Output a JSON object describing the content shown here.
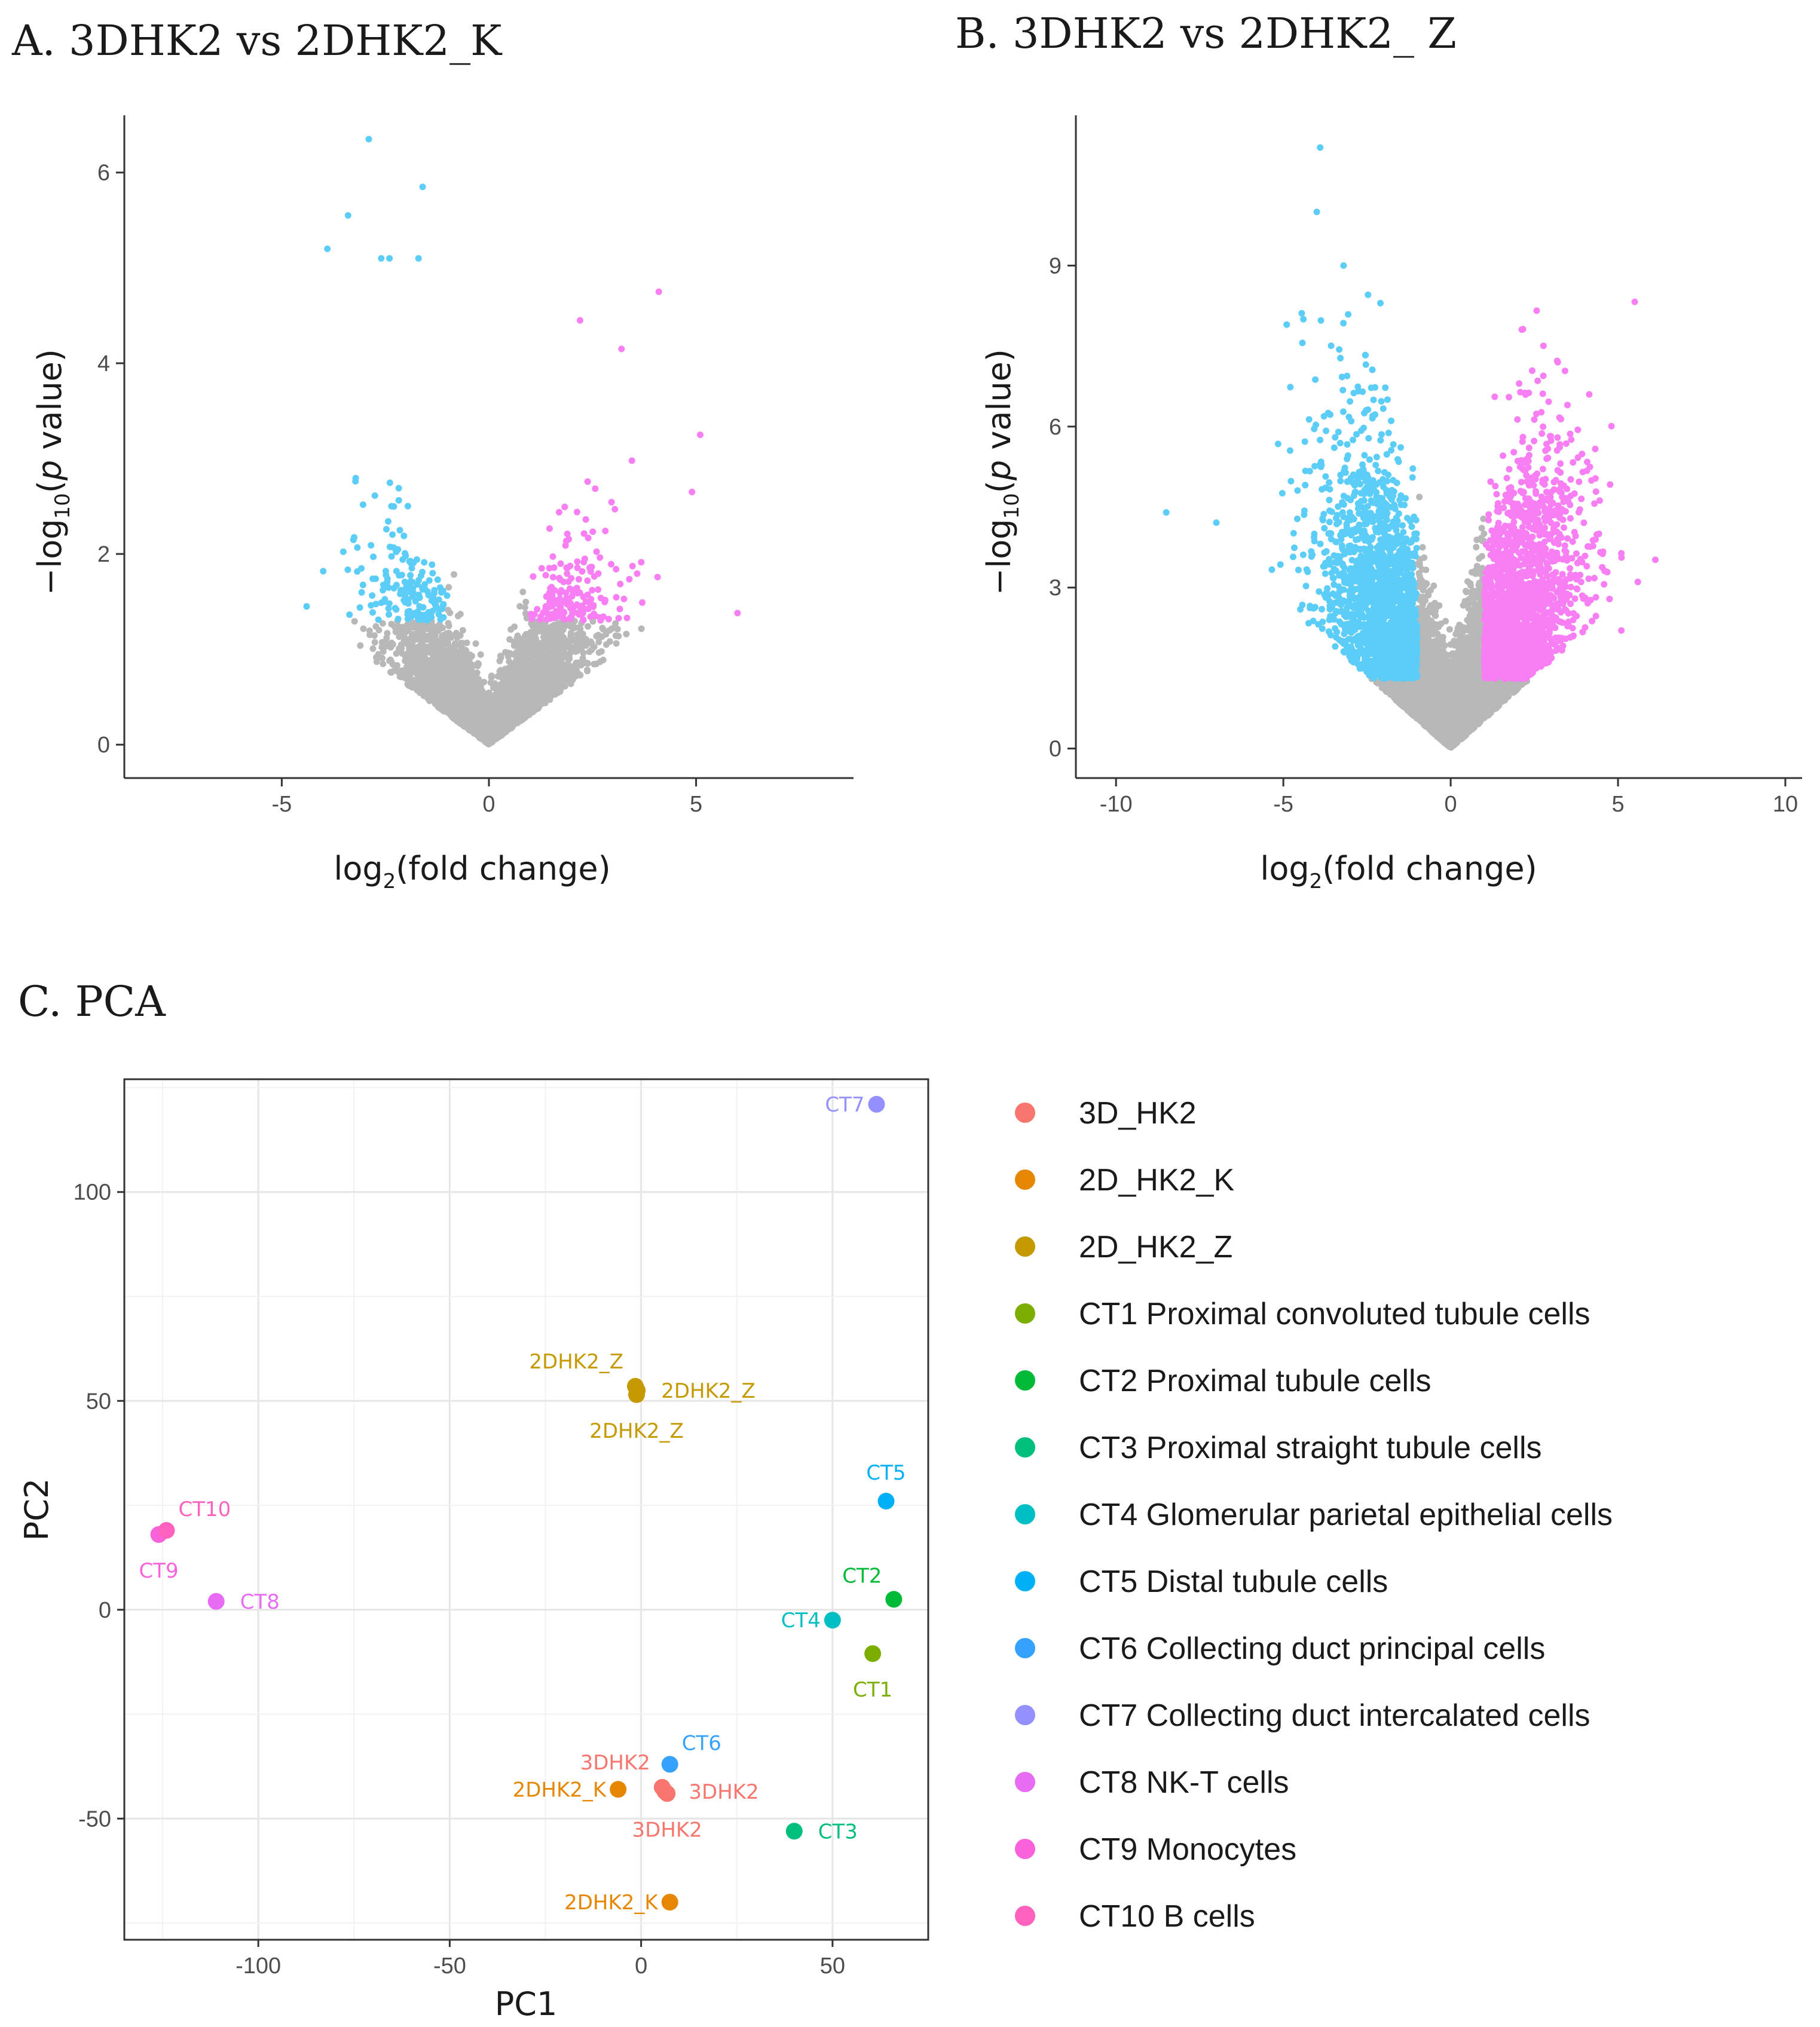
{
  "colors": {
    "up": "#f77ef3",
    "down": "#5ccdf6",
    "ns": "#b8b8b8"
  },
  "chart_data": [
    {
      "type": "scatter",
      "subtype": "volcano",
      "title": "A. 3DHK2 vs 2DHK2_K",
      "xlabel_main": "log",
      "xlabel_sub": "2",
      "xlabel_rest": "(fold change)",
      "ylabel_pre": "−log",
      "ylabel_sub": "10",
      "ylabel_open": "(",
      "ylabel_italic": "p",
      "ylabel_rest": " value)",
      "xlim": [
        -8.8,
        8.8
      ],
      "ylim": [
        -0.35,
        6.6
      ],
      "xticks": [
        -5,
        0,
        5
      ],
      "yticks": [
        0,
        2,
        4,
        6
      ],
      "fc_threshold": 1,
      "p_threshold": 1.3,
      "n_points": 4200,
      "notable_points": [
        [
          -2.9,
          6.35
        ],
        [
          -3.4,
          5.55
        ],
        [
          -1.6,
          5.85
        ],
        [
          -3.9,
          5.2
        ],
        [
          -2.6,
          5.1
        ],
        [
          -2.4,
          5.1
        ],
        [
          -1.7,
          5.1
        ],
        [
          2.2,
          4.45
        ],
        [
          4.1,
          4.75
        ],
        [
          6.0,
          1.38
        ],
        [
          5.1,
          3.25
        ],
        [
          3.2,
          4.15
        ],
        [
          -4.4,
          1.45
        ],
        [
          4.9,
          2.65
        ]
      ]
    },
    {
      "type": "scatter",
      "subtype": "volcano",
      "title": "B. 3DHK2 vs 2DHK2_ Z",
      "xlabel_main": "log",
      "xlabel_sub": "2",
      "xlabel_rest": "(fold change)",
      "ylabel_pre": "−log",
      "ylabel_sub": "10",
      "ylabel_open": "(",
      "ylabel_italic": "p",
      "ylabel_rest": " value)",
      "xlim": [
        -11.2,
        10.5
      ],
      "ylim": [
        -0.55,
        11.8
      ],
      "xticks": [
        -10,
        -5,
        0,
        5,
        10
      ],
      "yticks": [
        0,
        3,
        6,
        9
      ],
      "fc_threshold": 1,
      "p_threshold": 1.3,
      "n_points": 9000,
      "notable_points": [
        [
          -3.9,
          11.2
        ],
        [
          -4.0,
          10.0
        ],
        [
          -3.2,
          9.0
        ],
        [
          -2.1,
          8.3
        ],
        [
          -8.5,
          4.4
        ],
        [
          3.2,
          7.2
        ],
        [
          5.1,
          2.2
        ],
        [
          -4.4,
          8.0
        ],
        [
          -4.9,
          7.9
        ]
      ]
    },
    {
      "type": "scatter",
      "subtype": "pca",
      "title": "C. PCA",
      "xlabel": "PC1",
      "ylabel": "PC2",
      "xlim": [
        -135,
        75
      ],
      "ylim": [
        -79,
        127
      ],
      "xticks": [
        -100,
        -50,
        0,
        50
      ],
      "yticks": [
        -50,
        0,
        50,
        100
      ],
      "series": [
        {
          "name": "3D_HK2",
          "color": "#f8766d",
          "points": [
            {
              "x": 5.5,
              "y": -42.5,
              "label": "3DHK2",
              "pos": "upper-left"
            },
            {
              "x": 6.2,
              "y": -43.5,
              "label": "3DHK2",
              "pos": "right"
            },
            {
              "x": 6.8,
              "y": -44.0,
              "label": "3DHK2",
              "pos": "below"
            }
          ]
        },
        {
          "name": "2D_HK2_K",
          "color": "#e58700",
          "points": [
            {
              "x": -6,
              "y": -43,
              "label": "2DHK2_K",
              "pos": "left"
            },
            {
              "x": 7.5,
              "y": -70,
              "label": "2DHK2_K",
              "pos": "left"
            }
          ]
        },
        {
          "name": "2D_HK2_Z",
          "color": "#c49a00",
          "points": [
            {
              "x": -1.5,
              "y": 53.5,
              "label": "2DHK2_Z",
              "pos": "upper-left"
            },
            {
              "x": -1.0,
              "y": 52.5,
              "label": "2DHK2_Z",
              "pos": "right"
            },
            {
              "x": -1.2,
              "y": 51.5,
              "label": "2DHK2_Z",
              "pos": "below"
            }
          ]
        },
        {
          "name": "CT1 Proximal convoluted tubule cells",
          "color": "#7cae00",
          "points": [
            {
              "x": 60.5,
              "y": -10.5,
              "label": "CT1",
              "pos": "below"
            }
          ]
        },
        {
          "name": "CT2 Proximal tubule cells",
          "color": "#00ba38",
          "points": [
            {
              "x": 66,
              "y": 2.5,
              "label": "CT2",
              "pos": "above-left"
            }
          ]
        },
        {
          "name": "CT3 Proximal straight tubule cells",
          "color": "#00bf7d",
          "points": [
            {
              "x": 40,
              "y": -53,
              "label": "CT3",
              "pos": "right"
            }
          ]
        },
        {
          "name": "CT4 Glomerular parietal epithelial cells",
          "color": "#00bfc4",
          "points": [
            {
              "x": 50,
              "y": -2.5,
              "label": "CT4",
              "pos": "left"
            }
          ]
        },
        {
          "name": "CT5 Distal tubule cells",
          "color": "#00b0f6",
          "points": [
            {
              "x": 64,
              "y": 26,
              "label": "CT5",
              "pos": "above"
            }
          ]
        },
        {
          "name": "CT6 Collecting duct principal cells",
          "color": "#35a2ff",
          "points": [
            {
              "x": 7.5,
              "y": -37,
              "label": "CT6",
              "pos": "upper-right"
            }
          ]
        },
        {
          "name": "CT7 Collecting duct intercalated cells",
          "color": "#9590ff",
          "points": [
            {
              "x": 61.5,
              "y": 121,
              "label": "CT7",
              "pos": "left"
            }
          ]
        },
        {
          "name": "CT8 NK-T cells",
          "color": "#e76bf3",
          "points": [
            {
              "x": -111,
              "y": 2,
              "label": "CT8",
              "pos": "right"
            }
          ]
        },
        {
          "name": "CT9 Monocytes",
          "color": "#fa62db",
          "points": [
            {
              "x": -126,
              "y": 18,
              "label": "CT9",
              "pos": "below"
            }
          ]
        },
        {
          "name": "CT10 B cells",
          "color": "#ff62bc",
          "points": [
            {
              "x": -124,
              "y": 19,
              "label": "CT10",
              "pos": "upper-right"
            }
          ]
        }
      ]
    }
  ]
}
